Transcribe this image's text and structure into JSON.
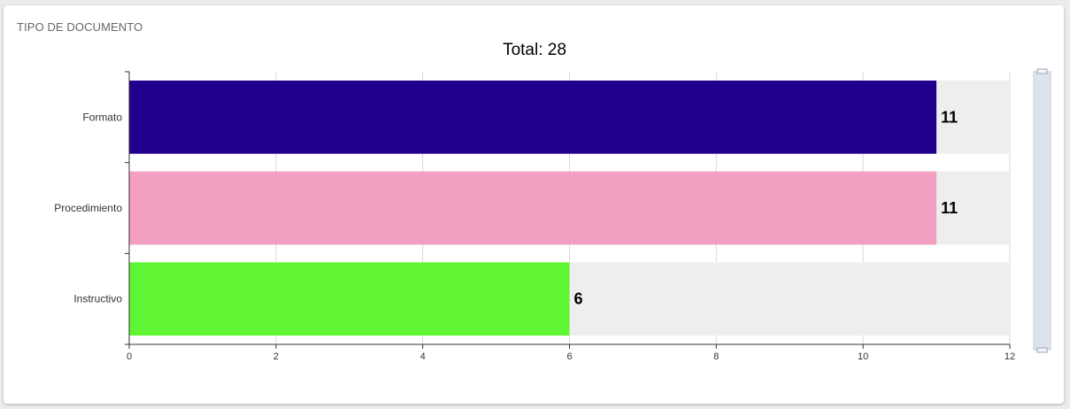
{
  "card": {
    "title": "TIPO DE DOCUMENTO"
  },
  "chart_data": {
    "type": "bar",
    "orientation": "horizontal",
    "title": "Total: 28",
    "categories": [
      "Formato",
      "Procedimiento",
      "Instructivo"
    ],
    "values": [
      11,
      11,
      6
    ],
    "colors": [
      "#22008f",
      "#f29fc1",
      "#5ff534"
    ],
    "background_bar_color": "#eeeeee",
    "xlim": [
      0,
      12
    ],
    "x_ticks": [
      0,
      2,
      4,
      6,
      8,
      10,
      12
    ],
    "grid": true,
    "data_labels": [
      "11",
      "11",
      "6"
    ],
    "xlabel": "",
    "ylabel": ""
  }
}
